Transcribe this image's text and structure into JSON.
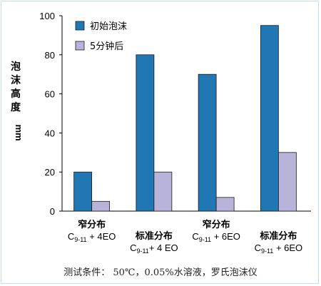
{
  "chart_data": {
    "type": "bar",
    "categories": [
      {
        "line1": "窄分布",
        "line2": "C9-11 + 4EO"
      },
      {
        "line1": "标准分布",
        "line2": "C9-11+ 4 EO"
      },
      {
        "line1": "窄分布",
        "line2": "C9-11 + 6EO"
      },
      {
        "line1": "标准分布",
        "line2": "C9-11 + 6EO"
      }
    ],
    "series": [
      {
        "name": "初始泡沫",
        "color": "#2077b4",
        "values": [
          20,
          80,
          70,
          95
        ]
      },
      {
        "name": "5分钟后",
        "color": "#b8b3d8",
        "values": [
          5,
          20,
          7,
          30
        ]
      }
    ],
    "ylabel_chars": [
      "泡",
      "沫",
      "高",
      "度"
    ],
    "yunit": "mm",
    "ylim": [
      0,
      100
    ],
    "yticks": [
      0,
      20,
      40,
      60,
      80,
      100
    ],
    "legend_position": "top-left"
  },
  "caption": "测试条件： 50℃，0.05%水溶液，罗氏泡沫仪"
}
